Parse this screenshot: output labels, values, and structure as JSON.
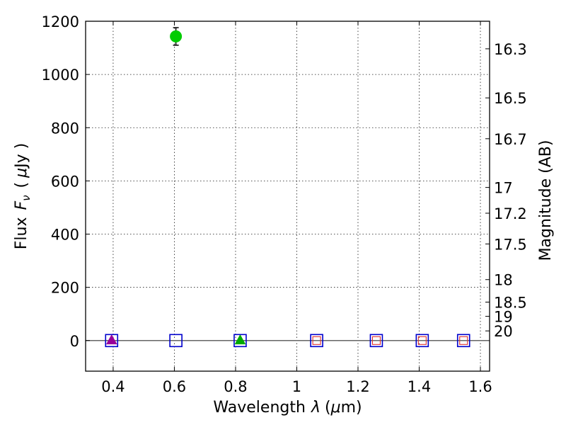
{
  "chart_data": {
    "type": "scatter",
    "xlabel": "Wavelength",
    "xlabel_symbol": "λ",
    "xlabel_unit_open": "(",
    "xlabel_unit_mu": "μ",
    "xlabel_unit_close": "m)",
    "ylabel_prefix": "Flux",
    "ylabel_symbol": "F",
    "ylabel_subscript": "ν",
    "ylabel_unit_open": "(",
    "ylabel_unit_mu": "μ",
    "ylabel_unit_close": "Jy )",
    "y2label": "Magnitude (AB)",
    "xlim": [
      0.31,
      1.63
    ],
    "ylim": [
      -115,
      1200
    ],
    "grid": true,
    "x_ticks": [
      "0.4",
      "0.6",
      "0.8",
      "1",
      "1.2",
      "1.4",
      "1.6"
    ],
    "y_ticks": [
      "0",
      "200",
      "400",
      "600",
      "800",
      "1000",
      "1200"
    ],
    "mag_ticks": [
      "16.3",
      "16.5",
      "16.7",
      "17",
      "17.2",
      "17.5",
      "18",
      "18.5",
      "19",
      "20"
    ],
    "zero_line": 0,
    "series": [
      {
        "marker": "circle",
        "color": "#00cc00",
        "points": [
          {
            "x": 0.605,
            "y": 1143,
            "yerr": 33
          }
        ]
      },
      {
        "marker": "triangle",
        "color": "#990099",
        "points": [
          {
            "x": 0.395,
            "y": 2
          }
        ]
      },
      {
        "marker": "triangle",
        "color": "#00aa00",
        "points": [
          {
            "x": 0.815,
            "y": 2
          }
        ]
      },
      {
        "marker": "open-square-small",
        "color": "#e03030",
        "points": [
          {
            "x": 1.065,
            "y": 0
          },
          {
            "x": 1.26,
            "y": 0
          },
          {
            "x": 1.41,
            "y": 0
          },
          {
            "x": 1.545,
            "y": 0
          }
        ]
      },
      {
        "marker": "open-square",
        "color": "#0000cc",
        "points": [
          {
            "x": 0.395,
            "y": 0
          },
          {
            "x": 0.605,
            "y": 0
          },
          {
            "x": 0.815,
            "y": 0
          },
          {
            "x": 1.065,
            "y": 0
          },
          {
            "x": 1.26,
            "y": 0
          },
          {
            "x": 1.41,
            "y": 0
          },
          {
            "x": 1.545,
            "y": 0
          }
        ]
      }
    ]
  }
}
